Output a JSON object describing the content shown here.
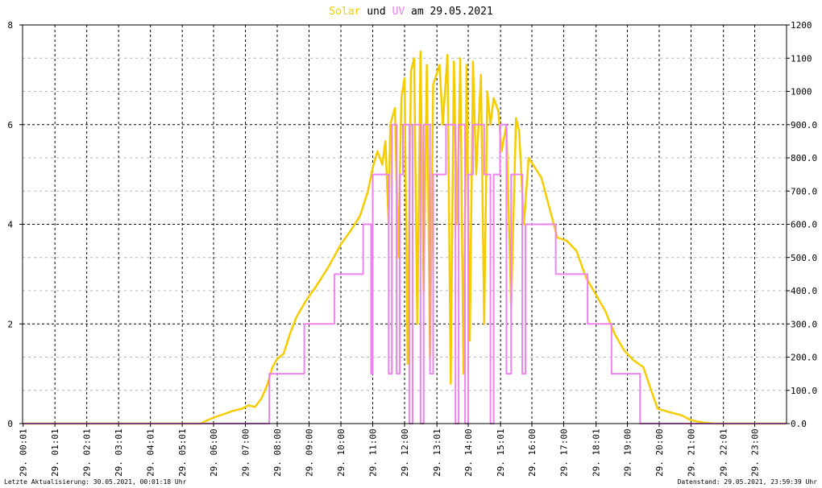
{
  "title": {
    "part1": "Solar",
    "part2": " und ",
    "part3": "UV",
    "part4": " am 29.05.2021"
  },
  "footer": {
    "left": "Letzte Aktualisierung: 30.05.2021, 00:01:18 Uhr",
    "right": "Datenstand: 29.05.2021, 23:59:39 Uhr"
  },
  "colors": {
    "solar": "#f5cc00",
    "uv": "#ee82ee",
    "solar_title": "#f5cc00",
    "uv_title": "#ee82ee",
    "grid": "#000000",
    "grid_minor": "#b4b4b4"
  },
  "chart_data": {
    "type": "line",
    "x_range_hours": [
      0,
      24
    ],
    "x_ticks": [
      {
        "h": 0.0167,
        "label": "29. 00:01"
      },
      {
        "h": 1.0167,
        "label": "29. 01:01"
      },
      {
        "h": 2.0167,
        "label": "29. 02:01"
      },
      {
        "h": 3.0167,
        "label": "29. 03:01"
      },
      {
        "h": 4.0167,
        "label": "29. 04:01"
      },
      {
        "h": 5.0167,
        "label": "29. 05:01"
      },
      {
        "h": 6.0,
        "label": "29. 06:00"
      },
      {
        "h": 7.0,
        "label": "29. 07:00"
      },
      {
        "h": 8.0,
        "label": "29. 08:00"
      },
      {
        "h": 9.0,
        "label": "29. 09:00"
      },
      {
        "h": 10.0,
        "label": "29. 10:00"
      },
      {
        "h": 11.0,
        "label": "29. 11:00"
      },
      {
        "h": 12.0,
        "label": "29. 12:00"
      },
      {
        "h": 13.0167,
        "label": "29. 13:01"
      },
      {
        "h": 14.0,
        "label": "29. 14:00"
      },
      {
        "h": 15.0167,
        "label": "29. 15:01"
      },
      {
        "h": 16.0,
        "label": "29. 16:00"
      },
      {
        "h": 17.0,
        "label": "29. 17:00"
      },
      {
        "h": 18.0167,
        "label": "29. 18:01"
      },
      {
        "h": 19.0,
        "label": "29. 19:00"
      },
      {
        "h": 20.0,
        "label": "29. 20:00"
      },
      {
        "h": 21.0,
        "label": "29. 21:00"
      },
      {
        "h": 22.0167,
        "label": "29. 22:01"
      },
      {
        "h": 23.0,
        "label": "29. 23:00"
      }
    ],
    "y_left": {
      "min": 0,
      "max": 8,
      "ticks": [
        "0",
        "2",
        "4",
        "6",
        "8"
      ]
    },
    "y_right": {
      "min": 0,
      "max": 1200,
      "ticks": [
        "0.0",
        "100.0",
        "200.0",
        "300.0",
        "400.0",
        "500.0",
        "600.0",
        "700.0",
        "800.0",
        "900.0",
        "1000",
        "1100",
        "1200"
      ]
    },
    "grid": true,
    "series": [
      {
        "axis": "right",
        "color": "#f5cc00",
        "points": [
          [
            0,
            0
          ],
          [
            5.6,
            0
          ],
          [
            5.8,
            10
          ],
          [
            6,
            18
          ],
          [
            6.3,
            28
          ],
          [
            6.6,
            38
          ],
          [
            6.9,
            45
          ],
          [
            7.1,
            55
          ],
          [
            7.3,
            50
          ],
          [
            7.5,
            75
          ],
          [
            7.7,
            120
          ],
          [
            7.85,
            170
          ],
          [
            8.0,
            195
          ],
          [
            8.2,
            210
          ],
          [
            8.4,
            270
          ],
          [
            8.6,
            320
          ],
          [
            8.9,
            370
          ],
          [
            9.2,
            410
          ],
          [
            9.6,
            470
          ],
          [
            10.0,
            540
          ],
          [
            10.3,
            580
          ],
          [
            10.6,
            625
          ],
          [
            10.85,
            700
          ],
          [
            11.0,
            770
          ],
          [
            11.15,
            820
          ],
          [
            11.3,
            780
          ],
          [
            11.4,
            850
          ],
          [
            11.5,
            600
          ],
          [
            11.55,
            900
          ],
          [
            11.7,
            950
          ],
          [
            11.8,
            500
          ],
          [
            11.9,
            980
          ],
          [
            12.0,
            1040
          ],
          [
            12.1,
            180
          ],
          [
            12.2,
            1060
          ],
          [
            12.3,
            1100
          ],
          [
            12.4,
            300
          ],
          [
            12.5,
            1120
          ],
          [
            12.6,
            400
          ],
          [
            12.7,
            1080
          ],
          [
            12.8,
            200
          ],
          [
            12.9,
            1020
          ],
          [
            13.0,
            1050
          ],
          [
            13.1,
            1080
          ],
          [
            13.2,
            900
          ],
          [
            13.35,
            1110
          ],
          [
            13.45,
            120
          ],
          [
            13.55,
            1090
          ],
          [
            13.65,
            600
          ],
          [
            13.75,
            1100
          ],
          [
            13.85,
            150
          ],
          [
            13.95,
            1080
          ],
          [
            14.05,
            250
          ],
          [
            14.15,
            1090
          ],
          [
            14.25,
            750
          ],
          [
            14.4,
            1050
          ],
          [
            14.5,
            300
          ],
          [
            14.6,
            1000
          ],
          [
            14.7,
            900
          ],
          [
            14.8,
            980
          ],
          [
            14.95,
            940
          ],
          [
            15.05,
            820
          ],
          [
            15.2,
            900
          ],
          [
            15.35,
            350
          ],
          [
            15.5,
            920
          ],
          [
            15.6,
            880
          ],
          [
            15.75,
            600
          ],
          [
            15.9,
            800
          ],
          [
            16.1,
            770
          ],
          [
            16.3,
            740
          ],
          [
            16.55,
            650
          ],
          [
            16.8,
            560
          ],
          [
            17.1,
            550
          ],
          [
            17.4,
            520
          ],
          [
            17.7,
            440
          ],
          [
            18.0,
            390
          ],
          [
            18.3,
            340
          ],
          [
            18.6,
            270
          ],
          [
            18.9,
            220
          ],
          [
            19.2,
            190
          ],
          [
            19.5,
            170
          ],
          [
            19.75,
            100
          ],
          [
            19.95,
            45
          ],
          [
            20.3,
            35
          ],
          [
            20.7,
            25
          ],
          [
            21.0,
            10
          ],
          [
            21.4,
            3
          ],
          [
            21.7,
            0
          ],
          [
            24,
            0
          ]
        ]
      },
      {
        "axis": "left",
        "color": "#ee82ee",
        "points": [
          [
            0,
            0
          ],
          [
            7.75,
            0
          ],
          [
            7.75,
            1
          ],
          [
            8.85,
            1
          ],
          [
            8.85,
            2
          ],
          [
            9.8,
            2
          ],
          [
            9.8,
            3
          ],
          [
            10.7,
            3
          ],
          [
            10.7,
            4
          ],
          [
            10.95,
            4
          ],
          [
            10.95,
            1
          ],
          [
            11.0,
            1
          ],
          [
            11.0,
            5
          ],
          [
            11.5,
            5
          ],
          [
            11.5,
            1
          ],
          [
            11.6,
            1
          ],
          [
            11.6,
            6
          ],
          [
            11.75,
            6
          ],
          [
            11.75,
            1
          ],
          [
            11.85,
            1
          ],
          [
            11.85,
            5
          ],
          [
            11.95,
            5
          ],
          [
            11.95,
            6
          ],
          [
            12.15,
            6
          ],
          [
            12.15,
            0
          ],
          [
            12.25,
            0
          ],
          [
            12.25,
            6
          ],
          [
            12.5,
            6
          ],
          [
            12.5,
            0
          ],
          [
            12.6,
            0
          ],
          [
            12.6,
            6
          ],
          [
            12.8,
            6
          ],
          [
            12.8,
            1
          ],
          [
            12.9,
            1
          ],
          [
            12.9,
            5
          ],
          [
            13.3,
            5
          ],
          [
            13.3,
            6
          ],
          [
            13.6,
            6
          ],
          [
            13.6,
            0
          ],
          [
            13.7,
            0
          ],
          [
            13.7,
            6
          ],
          [
            13.9,
            6
          ],
          [
            13.9,
            0
          ],
          [
            14.0,
            0
          ],
          [
            14.0,
            5
          ],
          [
            14.15,
            5
          ],
          [
            14.15,
            6
          ],
          [
            14.5,
            6
          ],
          [
            14.5,
            5
          ],
          [
            14.7,
            5
          ],
          [
            14.7,
            0
          ],
          [
            14.8,
            0
          ],
          [
            14.8,
            5
          ],
          [
            15.0,
            5
          ],
          [
            15.0,
            6
          ],
          [
            15.2,
            6
          ],
          [
            15.2,
            1
          ],
          [
            15.35,
            1
          ],
          [
            15.35,
            5
          ],
          [
            15.7,
            5
          ],
          [
            15.7,
            1
          ],
          [
            15.8,
            1
          ],
          [
            15.8,
            4
          ],
          [
            16.75,
            4
          ],
          [
            16.75,
            3
          ],
          [
            17.75,
            3
          ],
          [
            17.75,
            2
          ],
          [
            18.5,
            2
          ],
          [
            18.5,
            1
          ],
          [
            19.4,
            1
          ],
          [
            19.4,
            0
          ],
          [
            24,
            0
          ]
        ]
      }
    ]
  }
}
